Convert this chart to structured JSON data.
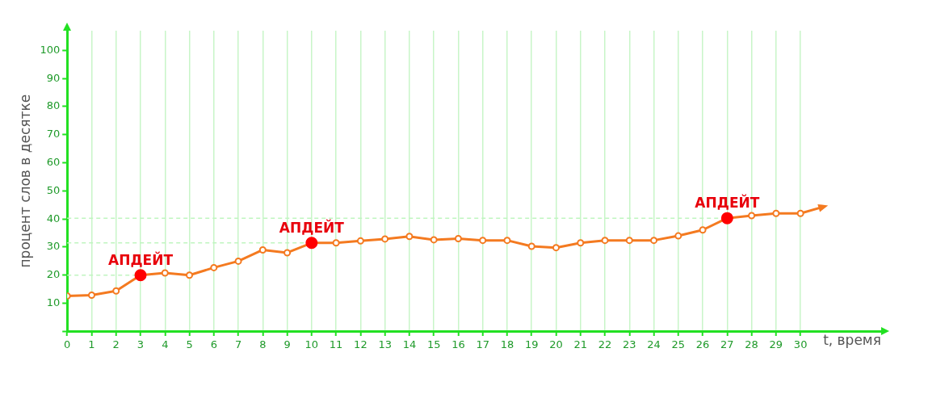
{
  "chart_data": {
    "type": "line",
    "xlabel": "t, время",
    "ylabel": "процент слов в десятке",
    "xlim": [
      0,
      33.3
    ],
    "ylim": [
      0,
      107
    ],
    "xticks": [
      0,
      1,
      2,
      3,
      4,
      5,
      6,
      7,
      8,
      9,
      10,
      11,
      12,
      13,
      14,
      15,
      16,
      17,
      18,
      19,
      20,
      21,
      22,
      23,
      24,
      25,
      26,
      27,
      28,
      29,
      30
    ],
    "yticks": [
      {
        "value": 0,
        "label": null
      },
      10,
      20,
      30,
      40,
      50,
      60,
      70,
      80,
      90,
      100
    ],
    "series": [
      {
        "type": "line",
        "color": "#f47a20",
        "marker": "circle",
        "x": [
          0,
          1,
          2,
          3,
          4,
          5,
          6,
          7,
          8,
          9,
          10,
          11,
          12,
          13,
          14,
          15,
          16,
          17,
          18,
          19,
          20,
          21,
          22,
          23,
          24,
          25,
          26,
          27,
          28,
          29,
          30,
          31
        ],
        "values": [
          12.6,
          12.9,
          14.4,
          20,
          20.8,
          20,
          22.7,
          25,
          29,
          28,
          31.5,
          31.5,
          32.2,
          32.9,
          33.8,
          32.6,
          33,
          32.4,
          32.4,
          30.3,
          29.8,
          31.5,
          32.4,
          32.4,
          32.4,
          34,
          36.1,
          40.3,
          41.2,
          42,
          42,
          44.5
        ]
      },
      {
        "type": "scatter",
        "color": "#ff0000",
        "marker": "circle",
        "x": [
          3,
          10,
          27
        ],
        "values": [
          20,
          31.5,
          40.3
        ]
      }
    ],
    "ref_lines": [
      {
        "axis": "y",
        "value": 20,
        "color": "#bff5bf",
        "line_style": "dashed"
      },
      {
        "axis": "y",
        "value": 31.5,
        "color": "#bff5bf",
        "line_style": "dashed"
      },
      {
        "axis": "y",
        "value": 40.3,
        "color": "#bff5bf",
        "line_style": "dashed"
      }
    ],
    "annotations": [
      {
        "text": "АПДЕЙТ",
        "x": 3,
        "y": 20
      },
      {
        "text": "АПДЕЙТ",
        "x": 10,
        "y": 31.5
      },
      {
        "text": "АПДЕЙТ",
        "x": 27,
        "y": 40.3
      }
    ],
    "grid": "x",
    "legend": false
  }
}
